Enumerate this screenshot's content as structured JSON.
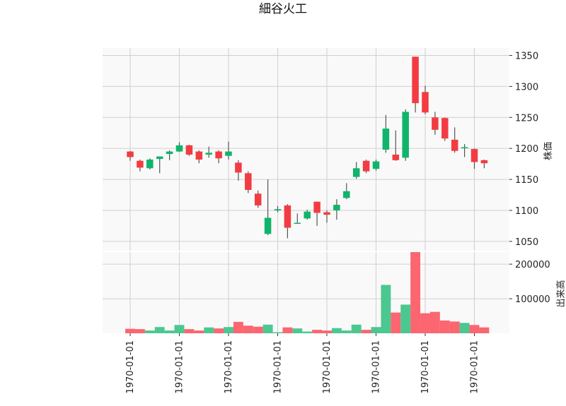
{
  "colors": {
    "up": "#0fb56a",
    "down": "#f23c42",
    "volume_up": "#4cc790",
    "volume_down": "#fb6670",
    "grid": "#d0d0d0",
    "plot_bg": "#f9f9f9",
    "wick": "#555555"
  },
  "chart_data": {
    "type": "candlestick",
    "title": "細谷火工",
    "price_axis_label": "株価",
    "volume_axis_label": "出来高",
    "price_ylim": [
      1035,
      1362
    ],
    "volume_ylim": [
      0,
      235000
    ],
    "price_ticks": [
      "1050",
      "1100",
      "1150",
      "1200",
      "1250",
      "1300",
      "1350"
    ],
    "price_tick_values": [
      1050,
      1100,
      1150,
      1200,
      1250,
      1300,
      1350
    ],
    "volume_ticks": [
      "100000",
      "200000"
    ],
    "volume_tick_values": [
      100000,
      200000
    ],
    "x_tick_labels": [
      "1970-01-01",
      "1970-01-01",
      "1970-01-01",
      "1970-01-01",
      "1970-01-01",
      "1970-01-01",
      "1970-01-01",
      "1970-01-01"
    ],
    "x_tick_indices": [
      0,
      5,
      10,
      15,
      20,
      25,
      30,
      35
    ],
    "grid": true,
    "candles": [
      {
        "open": 1195,
        "high": 1196,
        "low": 1180,
        "close": 1186,
        "volume": 13000
      },
      {
        "open": 1180,
        "high": 1182,
        "low": 1163,
        "close": 1169,
        "volume": 12000
      },
      {
        "open": 1168,
        "high": 1184,
        "low": 1166,
        "close": 1182,
        "volume": 8000
      },
      {
        "open": 1183,
        "high": 1187,
        "low": 1160,
        "close": 1187,
        "volume": 18000
      },
      {
        "open": 1191,
        "high": 1197,
        "low": 1181,
        "close": 1195,
        "volume": 8000
      },
      {
        "open": 1195,
        "high": 1210,
        "low": 1194,
        "close": 1205,
        "volume": 24000
      },
      {
        "open": 1205,
        "high": 1206,
        "low": 1188,
        "close": 1190,
        "volume": 12000
      },
      {
        "open": 1195,
        "high": 1197,
        "low": 1176,
        "close": 1182,
        "volume": 8000
      },
      {
        "open": 1190,
        "high": 1203,
        "low": 1185,
        "close": 1193,
        "volume": 17000
      },
      {
        "open": 1195,
        "high": 1197,
        "low": 1176,
        "close": 1184,
        "volume": 14000
      },
      {
        "open": 1188,
        "high": 1211,
        "low": 1182,
        "close": 1195,
        "volume": 18000
      },
      {
        "open": 1177,
        "high": 1181,
        "low": 1148,
        "close": 1161,
        "volume": 33000
      },
      {
        "open": 1160,
        "high": 1163,
        "low": 1128,
        "close": 1133,
        "volume": 22000
      },
      {
        "open": 1127,
        "high": 1132,
        "low": 1104,
        "close": 1108,
        "volume": 19000
      },
      {
        "open": 1062,
        "high": 1150,
        "low": 1060,
        "close": 1088,
        "volume": 25000
      },
      {
        "open": 1100,
        "high": 1107,
        "low": 1097,
        "close": 1102,
        "volume": 3000
      },
      {
        "open": 1108,
        "high": 1110,
        "low": 1055,
        "close": 1072,
        "volume": 17000
      },
      {
        "open": 1079,
        "high": 1095,
        "low": 1078,
        "close": 1080,
        "volume": 14000
      },
      {
        "open": 1087,
        "high": 1101,
        "low": 1085,
        "close": 1098,
        "volume": 5000
      },
      {
        "open": 1114,
        "high": 1114,
        "low": 1075,
        "close": 1096,
        "volume": 10000
      },
      {
        "open": 1097,
        "high": 1100,
        "low": 1080,
        "close": 1093,
        "volume": 8000
      },
      {
        "open": 1100,
        "high": 1118,
        "low": 1085,
        "close": 1109,
        "volume": 15000
      },
      {
        "open": 1120,
        "high": 1144,
        "low": 1118,
        "close": 1131,
        "volume": 8000
      },
      {
        "open": 1154,
        "high": 1178,
        "low": 1151,
        "close": 1168,
        "volume": 25000
      },
      {
        "open": 1180,
        "high": 1182,
        "low": 1160,
        "close": 1163,
        "volume": 10000
      },
      {
        "open": 1167,
        "high": 1182,
        "low": 1164,
        "close": 1179,
        "volume": 18000
      },
      {
        "open": 1198,
        "high": 1254,
        "low": 1193,
        "close": 1232,
        "volume": 140000
      },
      {
        "open": 1190,
        "high": 1229,
        "low": 1180,
        "close": 1181,
        "volume": 60000
      },
      {
        "open": 1185,
        "high": 1263,
        "low": 1180,
        "close": 1259,
        "volume": 83000
      },
      {
        "open": 1348,
        "high": 1348,
        "low": 1258,
        "close": 1273,
        "volume": 235000
      },
      {
        "open": 1291,
        "high": 1301,
        "low": 1255,
        "close": 1258,
        "volume": 58000
      },
      {
        "open": 1250,
        "high": 1259,
        "low": 1222,
        "close": 1230,
        "volume": 62000
      },
      {
        "open": 1249,
        "high": 1250,
        "low": 1212,
        "close": 1216,
        "volume": 37000
      },
      {
        "open": 1214,
        "high": 1234,
        "low": 1193,
        "close": 1196,
        "volume": 34000
      },
      {
        "open": 1201,
        "high": 1207,
        "low": 1186,
        "close": 1202,
        "volume": 30000
      },
      {
        "open": 1199,
        "high": 1200,
        "low": 1167,
        "close": 1178,
        "volume": 24000
      },
      {
        "open": 1181,
        "high": 1182,
        "low": 1168,
        "close": 1176,
        "volume": 17000
      }
    ]
  }
}
